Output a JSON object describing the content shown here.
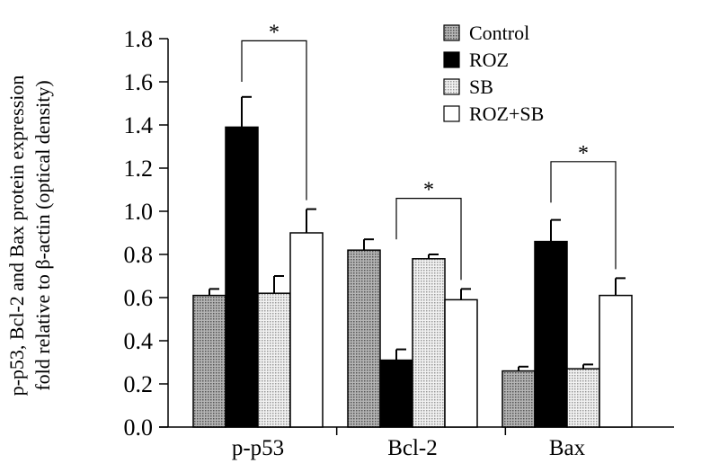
{
  "chart_data": {
    "type": "bar",
    "title": "",
    "xlabel": "",
    "ylabel": [
      "p-p53, Bcl-2 and Bax  protein expression",
      "fold relative to β-actin  (optical density)"
    ],
    "ylim": [
      0,
      1.8
    ],
    "yticks": [
      "0.0",
      "0.2",
      "0.4",
      "0.6",
      "0.8",
      "1.0",
      "1.2",
      "1.4",
      "1.6",
      "1.8"
    ],
    "categories": [
      "p-p53",
      "Bcl-2",
      "Bax"
    ],
    "legend_position": "top-right",
    "series": [
      {
        "name": "Control",
        "values": [
          0.61,
          0.82,
          0.26
        ],
        "errors": [
          0.03,
          0.05,
          0.02
        ],
        "color": "#9a9a9a"
      },
      {
        "name": "ROZ",
        "values": [
          1.39,
          0.31,
          0.86
        ],
        "errors": [
          0.14,
          0.05,
          0.1
        ],
        "color": "#000000"
      },
      {
        "name": "SB",
        "values": [
          0.62,
          0.78,
          0.27
        ],
        "errors": [
          0.08,
          0.02,
          0.02
        ],
        "color": "#d8d8d8"
      },
      {
        "name": "ROZ+SB",
        "values": [
          0.9,
          0.59,
          0.61
        ],
        "errors": [
          0.11,
          0.05,
          0.08
        ],
        "color": "#ffffff"
      }
    ],
    "annotations": [
      {
        "category": "p-p53",
        "from": "ROZ",
        "to": "ROZ+SB",
        "label": "*",
        "level": 1.79
      },
      {
        "category": "Bcl-2",
        "from": "ROZ",
        "to": "ROZ+SB",
        "label": "*",
        "level": 1.06
      },
      {
        "category": "Bax",
        "from": "ROZ",
        "to": "ROZ+SB",
        "label": "*",
        "level": 1.23
      }
    ]
  }
}
